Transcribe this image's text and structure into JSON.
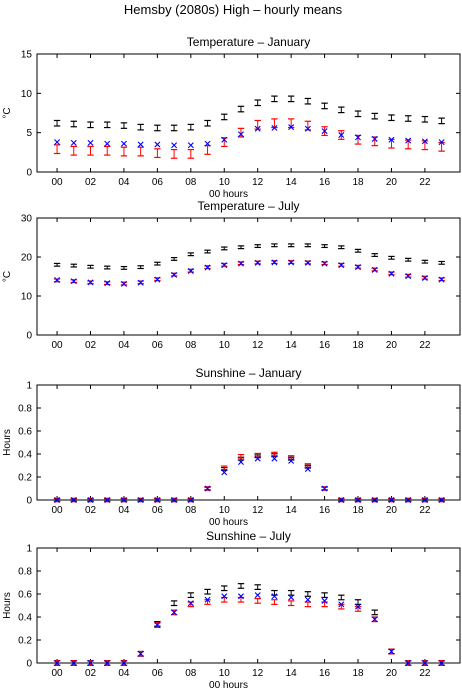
{
  "figure_title": "Hemsby (2080s) High – hourly means",
  "colors": {
    "black": "#000000",
    "red": "#ff0000",
    "blue": "#0000ff"
  },
  "chart_data": [
    {
      "type": "scatter",
      "title": "Temperature – January",
      "xlabel": "00 hours",
      "ylabel": "°C",
      "ylim": [
        0,
        15
      ],
      "yticks": [
        "0",
        "5",
        "10",
        "15"
      ],
      "xticks": [
        "00",
        "02",
        "04",
        "06",
        "08",
        "10",
        "12",
        "14",
        "16",
        "18",
        "20",
        "22"
      ],
      "x": [
        0,
        1,
        2,
        3,
        4,
        5,
        6,
        7,
        8,
        9,
        10,
        11,
        12,
        13,
        14,
        15,
        16,
        17,
        18,
        19,
        20,
        21,
        22,
        23
      ],
      "series": [
        {
          "color": "#000000",
          "marker": "errorbar",
          "values": [
            6.2,
            6.1,
            6.0,
            6.0,
            5.9,
            5.7,
            5.6,
            5.6,
            5.7,
            6.2,
            7.0,
            8.0,
            8.8,
            9.3,
            9.3,
            9.0,
            8.4,
            7.9,
            7.4,
            7.1,
            6.9,
            6.8,
            6.7,
            6.5
          ],
          "err": 0.35
        },
        {
          "color": "#ff0000",
          "marker": "errorbar",
          "values": [
            2.9,
            2.7,
            2.7,
            2.7,
            2.6,
            2.6,
            2.4,
            2.3,
            2.3,
            2.8,
            3.8,
            5.0,
            6.0,
            6.2,
            6.2,
            5.9,
            5.2,
            4.7,
            4.1,
            3.9,
            3.6,
            3.5,
            3.4,
            3.2
          ],
          "err": 0.55
        },
        {
          "color": "#0000ff",
          "marker": "cross",
          "values": [
            3.8,
            3.7,
            3.7,
            3.6,
            3.6,
            3.5,
            3.5,
            3.4,
            3.4,
            3.6,
            4.1,
            4.8,
            5.5,
            5.6,
            5.7,
            5.5,
            5.2,
            4.7,
            4.4,
            4.2,
            4.1,
            4.0,
            3.9,
            3.8
          ]
        }
      ]
    },
    {
      "type": "scatter",
      "title": "Temperature – July",
      "xlabel": "",
      "ylabel": "°C",
      "ylim": [
        0,
        30
      ],
      "yticks": [
        "0",
        "10",
        "20",
        "30"
      ],
      "xticks": [
        "00",
        "02",
        "04",
        "06",
        "08",
        "10",
        "12",
        "14",
        "16",
        "18",
        "20",
        "22"
      ],
      "x": [
        0,
        1,
        2,
        3,
        4,
        5,
        6,
        7,
        8,
        9,
        10,
        11,
        12,
        13,
        14,
        15,
        16,
        17,
        18,
        19,
        20,
        21,
        22,
        23
      ],
      "series": [
        {
          "color": "#000000",
          "marker": "errorbar",
          "values": [
            18.0,
            17.8,
            17.5,
            17.3,
            17.2,
            17.4,
            18.3,
            19.5,
            20.7,
            21.4,
            22.2,
            22.5,
            22.8,
            23.0,
            23.0,
            23.0,
            22.8,
            22.5,
            21.6,
            20.5,
            19.8,
            19.3,
            18.8,
            18.5
          ],
          "err": 0.35
        },
        {
          "color": "#ff0000",
          "marker": "errorbar",
          "values": [
            14.0,
            13.8,
            13.5,
            13.3,
            13.2,
            13.5,
            14.3,
            15.5,
            16.5,
            17.4,
            18.0,
            18.4,
            18.6,
            18.7,
            18.7,
            18.6,
            18.4,
            18.0,
            17.5,
            16.8,
            15.8,
            15.2,
            14.7,
            14.3
          ],
          "err": 0.35
        },
        {
          "color": "#0000ff",
          "marker": "cross",
          "values": [
            14.1,
            13.8,
            13.5,
            13.3,
            13.1,
            13.4,
            14.2,
            15.4,
            16.4,
            17.3,
            17.9,
            18.3,
            18.5,
            18.6,
            18.6,
            18.5,
            18.3,
            17.9,
            17.4,
            16.7,
            15.7,
            15.1,
            14.6,
            14.2
          ]
        }
      ]
    },
    {
      "type": "scatter",
      "title": "Sunshine – January",
      "xlabel": "00 hours",
      "ylabel": "Hours",
      "ylim": [
        0,
        1
      ],
      "yticks": [
        "0",
        "0.2",
        "0.4",
        "0.6",
        "0.8",
        "1"
      ],
      "xticks": [
        "00",
        "02",
        "04",
        "06",
        "08",
        "10",
        "12",
        "14",
        "16",
        "18",
        "20",
        "22"
      ],
      "x": [
        0,
        1,
        2,
        3,
        4,
        5,
        6,
        7,
        8,
        9,
        10,
        11,
        12,
        13,
        14,
        15,
        16,
        17,
        18,
        19,
        20,
        21,
        22,
        23
      ],
      "series": [
        {
          "color": "#000000",
          "marker": "errorbar",
          "values": [
            0,
            0,
            0,
            0,
            0,
            0,
            0,
            0,
            0,
            0.1,
            0.27,
            0.36,
            0.38,
            0.39,
            0.36,
            0.29,
            0.1,
            0,
            0,
            0,
            0,
            0,
            0,
            0
          ],
          "err": 0.012
        },
        {
          "color": "#ff0000",
          "marker": "errorbar",
          "values": [
            0,
            0,
            0,
            0,
            0,
            0,
            0,
            0,
            0,
            0.1,
            0.28,
            0.38,
            0.39,
            0.4,
            0.37,
            0.3,
            0.1,
            0,
            0,
            0,
            0,
            0,
            0,
            0
          ],
          "err": 0.015
        },
        {
          "color": "#0000ff",
          "marker": "cross",
          "values": [
            0,
            0,
            0,
            0,
            0,
            0,
            0,
            0,
            0,
            0.1,
            0.24,
            0.33,
            0.36,
            0.36,
            0.34,
            0.27,
            0.1,
            0,
            0,
            0,
            0,
            0,
            0,
            0
          ]
        }
      ]
    },
    {
      "type": "scatter",
      "title": "Sunshine – July",
      "xlabel": "00 hours",
      "ylabel": "Hours",
      "ylim": [
        0,
        1
      ],
      "yticks": [
        "0",
        "0.2",
        "0.4",
        "0.6",
        "0.8",
        "1"
      ],
      "xticks": [
        "00",
        "02",
        "04",
        "06",
        "08",
        "10",
        "12",
        "14",
        "16",
        "18",
        "20",
        "22"
      ],
      "x": [
        0,
        1,
        2,
        3,
        4,
        5,
        6,
        7,
        8,
        9,
        10,
        11,
        12,
        13,
        14,
        15,
        16,
        17,
        18,
        19,
        20,
        21,
        22,
        23
      ],
      "series": [
        {
          "color": "#000000",
          "marker": "errorbar",
          "values": [
            0,
            0,
            0,
            0,
            0,
            0.08,
            0.34,
            0.52,
            0.59,
            0.62,
            0.65,
            0.67,
            0.66,
            0.61,
            0.61,
            0.6,
            0.59,
            0.57,
            0.53,
            0.44,
            0.1,
            0,
            0,
            0
          ],
          "err": 0.02
        },
        {
          "color": "#ff0000",
          "marker": "errorbar",
          "values": [
            0,
            0,
            0,
            0,
            0,
            0.08,
            0.33,
            0.44,
            0.51,
            0.53,
            0.55,
            0.55,
            0.54,
            0.53,
            0.52,
            0.51,
            0.51,
            0.49,
            0.47,
            0.38,
            0.1,
            0,
            0,
            0
          ],
          "err": 0.02
        },
        {
          "color": "#0000ff",
          "marker": "cross",
          "values": [
            0,
            0,
            0,
            0,
            0,
            0.08,
            0.33,
            0.44,
            0.52,
            0.55,
            0.58,
            0.58,
            0.59,
            0.58,
            0.57,
            0.55,
            0.54,
            0.51,
            0.49,
            0.38,
            0.1,
            0,
            0,
            0
          ]
        }
      ]
    }
  ]
}
